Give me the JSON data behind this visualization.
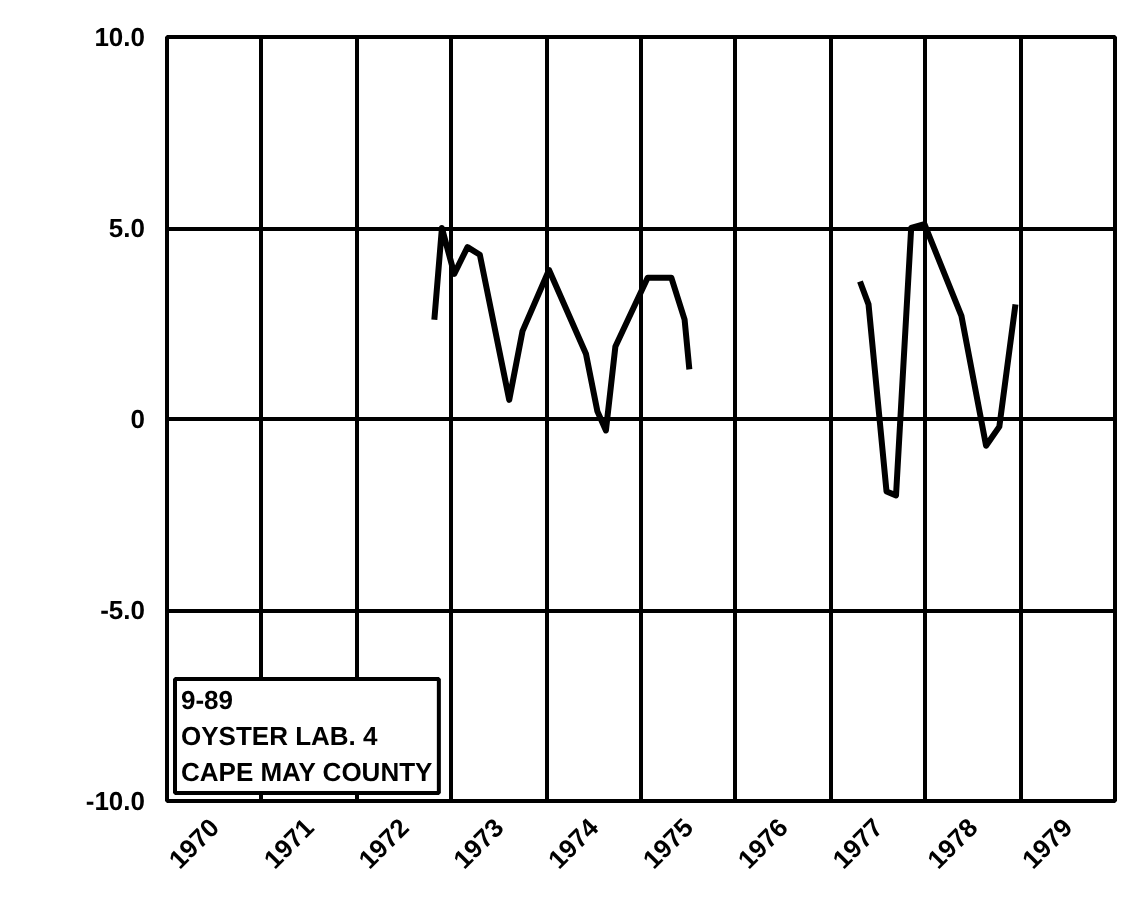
{
  "chart_data": {
    "type": "line",
    "color": "#000000",
    "x": [
      1972.82,
      1972.9,
      1973.03,
      1973.17,
      1973.3,
      1973.61,
      1973.75,
      1974.03,
      1974.42,
      1974.54,
      1974.63,
      1974.73,
      1975.07,
      1975.32,
      1975.46,
      1975.51,
      1976.4,
      1977.31,
      1977.4,
      1977.59,
      1977.69,
      1977.85,
      1977.99,
      1978.38,
      1978.64,
      1978.78,
      1978.95
    ],
    "values": [
      2.6,
      5.0,
      3.8,
      4.5,
      4.3,
      0.5,
      2.3,
      3.9,
      1.7,
      0.2,
      -0.3,
      1.9,
      3.7,
      3.7,
      2.6,
      1.3,
      null,
      3.6,
      3.0,
      -1.9,
      -2.0,
      5.0,
      5.1,
      2.7,
      -0.7,
      -0.2,
      3.0
    ],
    "xlim": [
      1970,
      1980
    ],
    "xticks": [
      {
        "value": 1970,
        "label": null
      },
      {
        "value": 1971,
        "label": null
      },
      {
        "value": 1972,
        "label": null
      },
      {
        "value": 1973,
        "label": null
      },
      {
        "value": 1974,
        "label": null
      },
      {
        "value": 1975,
        "label": null
      },
      {
        "value": 1976,
        "label": null
      },
      {
        "value": 1977,
        "label": null
      },
      {
        "value": 1978,
        "label": null
      },
      {
        "value": 1979,
        "label": null
      },
      {
        "value": 1980,
        "label": null
      },
      {
        "value": 1970.5,
        "label": "1970"
      },
      {
        "value": 1971.5,
        "label": "1971"
      },
      {
        "value": 1972.5,
        "label": "1972"
      },
      {
        "value": 1973.5,
        "label": "1973"
      },
      {
        "value": 1974.5,
        "label": "1974"
      },
      {
        "value": 1975.5,
        "label": "1975"
      },
      {
        "value": 1976.5,
        "label": "1976"
      },
      {
        "value": 1977.5,
        "label": "1977"
      },
      {
        "value": 1978.5,
        "label": "1978"
      },
      {
        "value": 1979.5,
        "label": "1979"
      }
    ],
    "ylim": [
      -10,
      10
    ],
    "yticks": [
      {
        "value": -10,
        "label": "-10.0"
      },
      {
        "value": -5,
        "label": "-5.0"
      },
      0,
      {
        "value": 5,
        "label": "5.0"
      },
      {
        "value": 10,
        "label": "10.0"
      }
    ],
    "grid": true,
    "marker": "none",
    "line_style": "solid",
    "annotations": [
      "9-89\nOYSTER LAB. 4\nCAPE MAY COUNTY"
    ]
  }
}
